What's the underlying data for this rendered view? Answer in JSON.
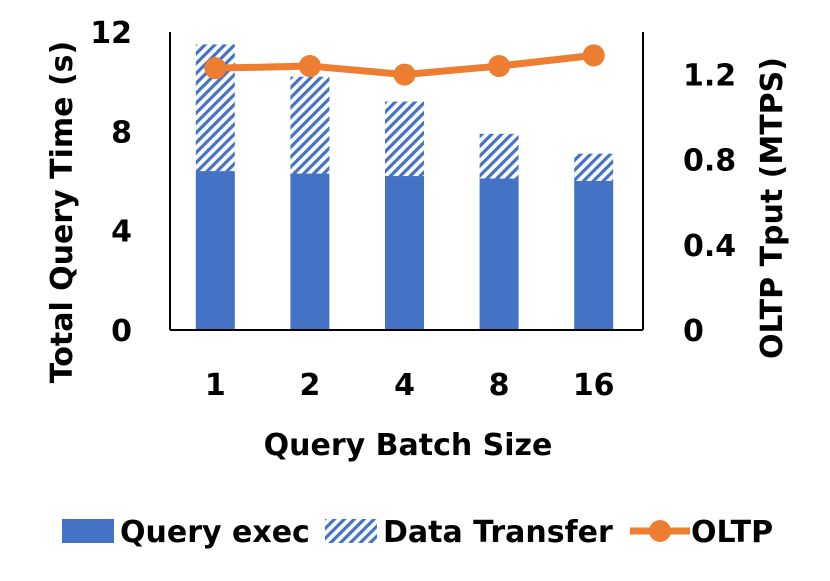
{
  "chart_data": {
    "type": "bar",
    "stacked": true,
    "categories": [
      "1",
      "2",
      "4",
      "8",
      "16"
    ],
    "xlabel": "Query Batch Size",
    "ylabel": "Total Query Time (s)",
    "y2label": "OLTP Tput (MTPS)",
    "ylim": [
      0,
      12
    ],
    "y2lim": [
      0,
      1.4
    ],
    "yticks": [
      "0",
      "4",
      "8",
      "12"
    ],
    "y2ticks": [
      "0",
      "0.4",
      "0.8",
      "1.2"
    ],
    "series": [
      {
        "name": "Query exec",
        "kind": "bar",
        "axis": "left",
        "color": "#4472C4",
        "values": [
          6.4,
          6.3,
          6.2,
          6.1,
          6.0
        ]
      },
      {
        "name": "Data Transfer",
        "kind": "bar-hatched",
        "axis": "left",
        "color": "#4472C4",
        "values": [
          5.1,
          3.9,
          3.0,
          1.8,
          1.1
        ]
      },
      {
        "name": "OLTP",
        "kind": "line",
        "axis": "right",
        "color": "#ED7D31",
        "values": [
          1.23,
          1.24,
          1.2,
          1.24,
          1.29
        ]
      }
    ],
    "legend_position": "bottom"
  }
}
